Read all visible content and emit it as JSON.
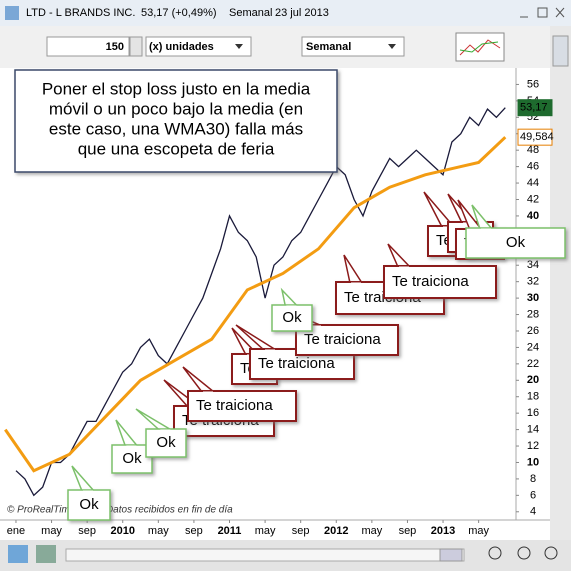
{
  "window": {
    "symbol": "LTD - L BRANDS INC.",
    "quote": "53,17 (+0,49%)",
    "period": "Semanal",
    "date": "23 jul 2013"
  },
  "toolbar": {
    "quantity": "150",
    "units": "(x) unidades",
    "period": "Semanal"
  },
  "copyright": "© ProRealTime.com - Datos recibidos en fin de día",
  "note": [
    "Poner el stop loss justo en la media",
    "móvil o un poco bajo la media (en",
    "este caso, una WMA30) falla más",
    "que una escopeta de feria"
  ],
  "annotations": [
    {
      "text": "Ok",
      "kind": "ok"
    },
    {
      "text": "Te traiciona",
      "kind": "bad"
    },
    {
      "text": "Te traiciona",
      "kind": "bad"
    },
    {
      "text": "Ok",
      "kind": "ok"
    },
    {
      "text": "Ok",
      "kind": "ok"
    },
    {
      "text": "Te traiciona",
      "kind": "bad"
    },
    {
      "text": "Te traiciona",
      "kind": "bad"
    },
    {
      "text": "Ok",
      "kind": "ok"
    },
    {
      "text": "Te traiciona",
      "kind": "bad"
    },
    {
      "text": "Te traiciona",
      "kind": "bad"
    },
    {
      "text": "Te traiciona",
      "kind": "bad"
    },
    {
      "text": "Te traiciona",
      "kind": "bad"
    },
    {
      "text": "Te traiciona",
      "kind": "bad"
    },
    {
      "text": "Te traiciona",
      "kind": "bad"
    },
    {
      "text": "Ok",
      "kind": "ok"
    }
  ],
  "chart_data": {
    "type": "line",
    "series": [
      {
        "color": "#1a1a3a",
        "x": [
          0,
          1,
          2,
          3,
          4,
          5,
          6,
          7,
          8,
          9,
          10,
          11,
          12,
          13,
          14,
          15,
          16,
          17,
          18,
          19,
          20,
          21,
          22,
          23,
          24,
          25,
          26,
          27,
          28,
          29,
          30,
          31,
          32,
          33,
          34,
          35,
          36,
          37,
          38,
          39,
          40,
          41,
          42,
          43,
          44,
          45,
          46,
          47,
          48,
          49,
          50,
          51,
          52,
          53,
          54,
          55
        ],
        "values": [
          9,
          8,
          6,
          7,
          10,
          10,
          11,
          13,
          15,
          15,
          17,
          19,
          21,
          22,
          24,
          25,
          23,
          22,
          24,
          26,
          28,
          30,
          33,
          36,
          40,
          38,
          37,
          35,
          30,
          34,
          35,
          37,
          38,
          40,
          42,
          44,
          46,
          45,
          42,
          40,
          43,
          45,
          47,
          46,
          47,
          48,
          47,
          46,
          45,
          49,
          50,
          52,
          51,
          53,
          52,
          53.17
        ]
      },
      {
        "color": "#f39c12",
        "x": [
          -1.2,
          2,
          6,
          10,
          14,
          18,
          22,
          26,
          30,
          34,
          38,
          42,
          46,
          50,
          52,
          55
        ],
        "values": [
          14,
          9,
          11,
          15.5,
          20,
          22.5,
          25,
          31,
          33,
          36,
          41,
          43.5,
          45,
          46,
          46.5,
          49.584
        ]
      }
    ],
    "xlim": [
      -1.3,
      56.2
    ],
    "xticks": [
      {
        "value": 0,
        "label": "ene"
      },
      {
        "value": 4,
        "label": "may"
      },
      {
        "value": 8,
        "label": "sep"
      },
      {
        "value": 12,
        "label": "2010"
      },
      {
        "value": 16,
        "label": "may"
      },
      {
        "value": 20,
        "label": "sep"
      },
      {
        "value": 24,
        "label": "2011"
      },
      {
        "value": 28,
        "label": "may"
      },
      {
        "value": 32,
        "label": "sep"
      },
      {
        "value": 36,
        "label": "2012"
      },
      {
        "value": 40,
        "label": "may"
      },
      {
        "value": 44,
        "label": "sep"
      },
      {
        "value": 48,
        "label": "2013"
      },
      {
        "value": 52,
        "label": "may"
      }
    ],
    "ylim": [
      3,
      58
    ],
    "yticks": [
      4,
      6,
      8,
      10,
      12,
      14,
      16,
      18,
      20,
      22,
      24,
      26,
      28,
      30,
      32,
      34,
      36,
      38,
      40,
      42,
      44,
      46,
      48,
      50,
      52,
      54,
      56
    ],
    "last_labels": [
      {
        "value": 53.17,
        "label": "53,17",
        "color": "#1e6b2e",
        "text_color": "#ffffff"
      },
      {
        "value": 49.584,
        "label": "49,584",
        "color": "#ffffff",
        "text_color": "#e67e00"
      }
    ]
  }
}
